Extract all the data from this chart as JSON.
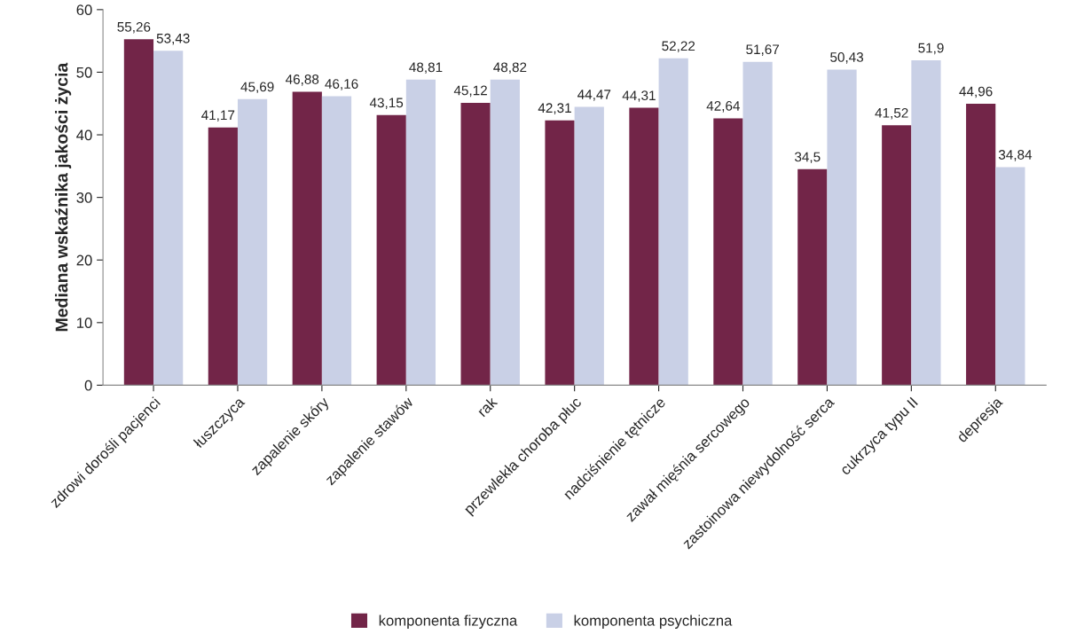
{
  "chart_data": {
    "type": "bar",
    "ylabel": "Mediana wskaźnika jakości życia",
    "categories": [
      "zdrowi dorośli pacjenci",
      "łuszczyca",
      "zapalenie skóry",
      "zapalenie stawów",
      "rak",
      "przewlekła choroba płuc",
      "nadciśnienie tętnicze",
      "zawał mięśnia sercowego",
      "zastoinowa niewydolność serca",
      "cukrzyca typu II",
      "depresja"
    ],
    "series": [
      {
        "name": "komponenta fizyczna",
        "color": "#722548",
        "values": [
          55.26,
          41.17,
          46.88,
          43.15,
          45.12,
          42.31,
          44.31,
          42.64,
          34.5,
          41.52,
          44.96
        ],
        "value_labels": [
          "55,26",
          "41,17",
          "46,88",
          "43,15",
          "45,12",
          "42,31",
          "44,31",
          "42,64",
          "34,5",
          "41,52",
          "44,96"
        ]
      },
      {
        "name": "komponenta psychiczna",
        "color": "#c9d0e6",
        "values": [
          53.43,
          45.69,
          46.16,
          48.81,
          48.82,
          44.47,
          52.22,
          51.67,
          50.43,
          51.9,
          34.84
        ],
        "value_labels": [
          "53,43",
          "45,69",
          "46,16",
          "48,81",
          "48,82",
          "44,47",
          "52,22",
          "51,67",
          "50,43",
          "51,9",
          "34,84"
        ]
      }
    ],
    "ylim": [
      0,
      60
    ],
    "yticks": [
      0,
      10,
      20,
      30,
      40,
      50,
      60
    ],
    "grid": false,
    "legend": "bottom"
  }
}
